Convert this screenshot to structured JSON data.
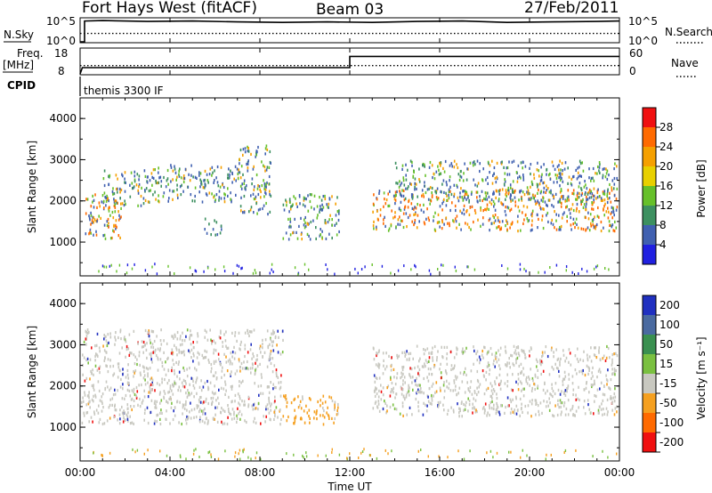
{
  "header": {
    "radar_name": "Fort Hays West (fitACF)",
    "beam": "Beam 03",
    "date": "27/Feb/2011"
  },
  "summary_panels": {
    "nsky_label": "N.Sky",
    "nsky_ticks": [
      "10^5",
      "10^0"
    ],
    "nsearch_label": "N.Search",
    "nsearch_ticks": [
      "10^5",
      "10^0"
    ],
    "freq_label_1": "Freq.",
    "freq_label_2": "[MHz]",
    "freq_ticks": [
      "18",
      "8"
    ],
    "nave_label": "Nave",
    "nave_ticks": [
      "60",
      "0"
    ],
    "cpid_label": "CPID",
    "cpid_value": "themis 3300 IF"
  },
  "chart_data": [
    {
      "type": "line",
      "panel": "N.Sky / N.Search",
      "series": [
        {
          "name": "N.Sky",
          "style": "solid",
          "x_hours": [
            0.0,
            0.2,
            0.2,
            1,
            3,
            5,
            7,
            9,
            11,
            13,
            15,
            17,
            19,
            21,
            23,
            24
          ],
          "log10_values": [
            0.0,
            0.0,
            4.5,
            4.6,
            4.4,
            4.5,
            4.3,
            4.2,
            4.3,
            4.2,
            4.4,
            4.5,
            4.2,
            4.3,
            4.4,
            4.5
          ]
        },
        {
          "name": "N.Search",
          "style": "dotted",
          "x_hours": [
            0,
            24
          ],
          "log10_values": [
            1.8,
            1.8
          ]
        }
      ]
    },
    {
      "type": "line",
      "panel": "Freq. / Nave",
      "series": [
        {
          "name": "Freq.",
          "unit": "MHz",
          "style": "solid",
          "x_hours": [
            0,
            0.1,
            12.0,
            12.0,
            24
          ],
          "values": [
            8.0,
            10.5,
            10.5,
            15.0,
            15.0
          ]
        },
        {
          "name": "Nave",
          "style": "dotted",
          "x_hours": [
            0,
            24
          ],
          "values": [
            20,
            20
          ]
        }
      ],
      "yrange_freq": [
        8,
        18
      ],
      "yrange_nave": [
        0,
        60
      ]
    },
    {
      "type": "heatmap",
      "panel": "Power",
      "ylabel": "Slant Range [km]",
      "y_ticks": [
        "1000",
        "2000",
        "3000",
        "4000"
      ],
      "yrange_km": [
        180,
        4500
      ],
      "colorbar_label": "Power [dB]",
      "colorbar_ticks": [
        "28",
        "24",
        "20",
        "16",
        "12",
        "8",
        "4"
      ],
      "colorbar_colors": [
        "#f01010",
        "#ff6a00",
        "#f5a000",
        "#e8d000",
        "#66c02a",
        "#3d9060",
        "#4060b0",
        "#2020e0"
      ],
      "scatter_bands": [
        {
          "t0": 0.0,
          "t1": 1.8,
          "r0": 1100,
          "r1": 2200,
          "level": "high"
        },
        {
          "t0": 1.0,
          "t1": 3.0,
          "r0": 1900,
          "r1": 2800,
          "level": "mid"
        },
        {
          "t0": 3.0,
          "t1": 7.0,
          "r0": 2000,
          "r1": 2900,
          "level": "mid"
        },
        {
          "t0": 7.0,
          "t1": 8.5,
          "r0": 1700,
          "r1": 3400,
          "level": "mid"
        },
        {
          "t0": 9.0,
          "t1": 11.5,
          "r0": 1100,
          "r1": 2200,
          "level": "mid"
        },
        {
          "t0": 5.5,
          "t1": 6.3,
          "r0": 1200,
          "r1": 1600,
          "level": "low"
        },
        {
          "t0": 13.0,
          "t1": 24.0,
          "r0": 1300,
          "r1": 2300,
          "level": "high"
        },
        {
          "t0": 14.0,
          "t1": 24.0,
          "r0": 2000,
          "r1": 3000,
          "level": "mid"
        }
      ]
    },
    {
      "type": "heatmap",
      "panel": "Velocity",
      "ylabel": "Slant Range [km]",
      "y_ticks": [
        "1000",
        "2000",
        "3000",
        "4000"
      ],
      "yrange_km": [
        180,
        4500
      ],
      "colorbar_label": "Velocity [m s⁻¹]",
      "colorbar_ticks": [
        "200",
        "100",
        "50",
        "15",
        "-15",
        "-50",
        "-100",
        "-200"
      ],
      "colorbar_colors": [
        "#2030c0",
        "#4a6aa0",
        "#3a9050",
        "#7ac040",
        "#c8c8c0",
        "#f5a020",
        "#ff6a00",
        "#f01010"
      ],
      "scatter_bands": [
        {
          "t0": 0.0,
          "t1": 9.0,
          "r0": 1100,
          "r1": 3400,
          "level": "ground"
        },
        {
          "t0": 9.0,
          "t1": 11.5,
          "r0": 1100,
          "r1": 1800,
          "level": "orange"
        },
        {
          "t0": 13.0,
          "t1": 24.0,
          "r0": 1300,
          "r1": 3000,
          "level": "ground"
        }
      ]
    }
  ],
  "x_axis": {
    "label": "Time UT",
    "ticks": [
      "00:00",
      "04:00",
      "08:00",
      "12:00",
      "16:00",
      "20:00",
      "00:00"
    ],
    "range_hours": [
      0,
      24
    ]
  }
}
